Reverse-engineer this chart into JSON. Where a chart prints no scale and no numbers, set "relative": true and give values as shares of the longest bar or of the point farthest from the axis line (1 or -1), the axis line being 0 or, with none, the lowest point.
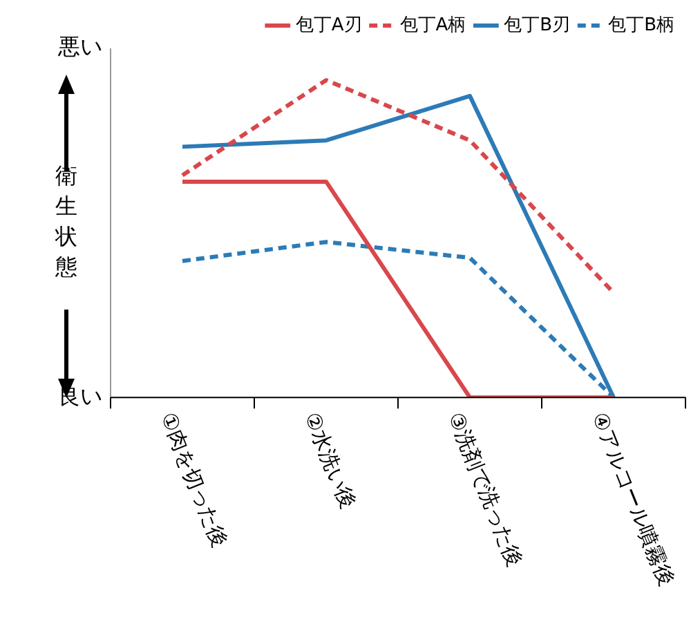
{
  "chart_data": {
    "type": "line",
    "relative": true,
    "ylabel": "衛生状態",
    "categories": [
      "①肉を切った後",
      "②水洗い後",
      "③洗剤で洗った後",
      "④アルコール噴霧後"
    ],
    "series": [
      {
        "name": "包丁A刃",
        "color": "#d9474b",
        "line_style": "solid",
        "values": [
          0.68,
          0.68,
          0,
          0
        ]
      },
      {
        "name": "包丁A柄",
        "color": "#d9474b",
        "line_style": "dashed",
        "values": [
          0.7,
          1,
          0.81,
          0.33
        ]
      },
      {
        "name": "包丁B刃",
        "color": "#2c7bb6",
        "line_style": "solid",
        "values": [
          0.79,
          0.81,
          0.95,
          0
        ]
      },
      {
        "name": "包丁B柄",
        "color": "#2c7bb6",
        "line_style": "dashed",
        "values": [
          0.43,
          0.49,
          0.44,
          0
        ]
      }
    ],
    "annotations": [
      "悪い",
      "良い"
    ],
    "legend": "top",
    "marker": "none"
  }
}
